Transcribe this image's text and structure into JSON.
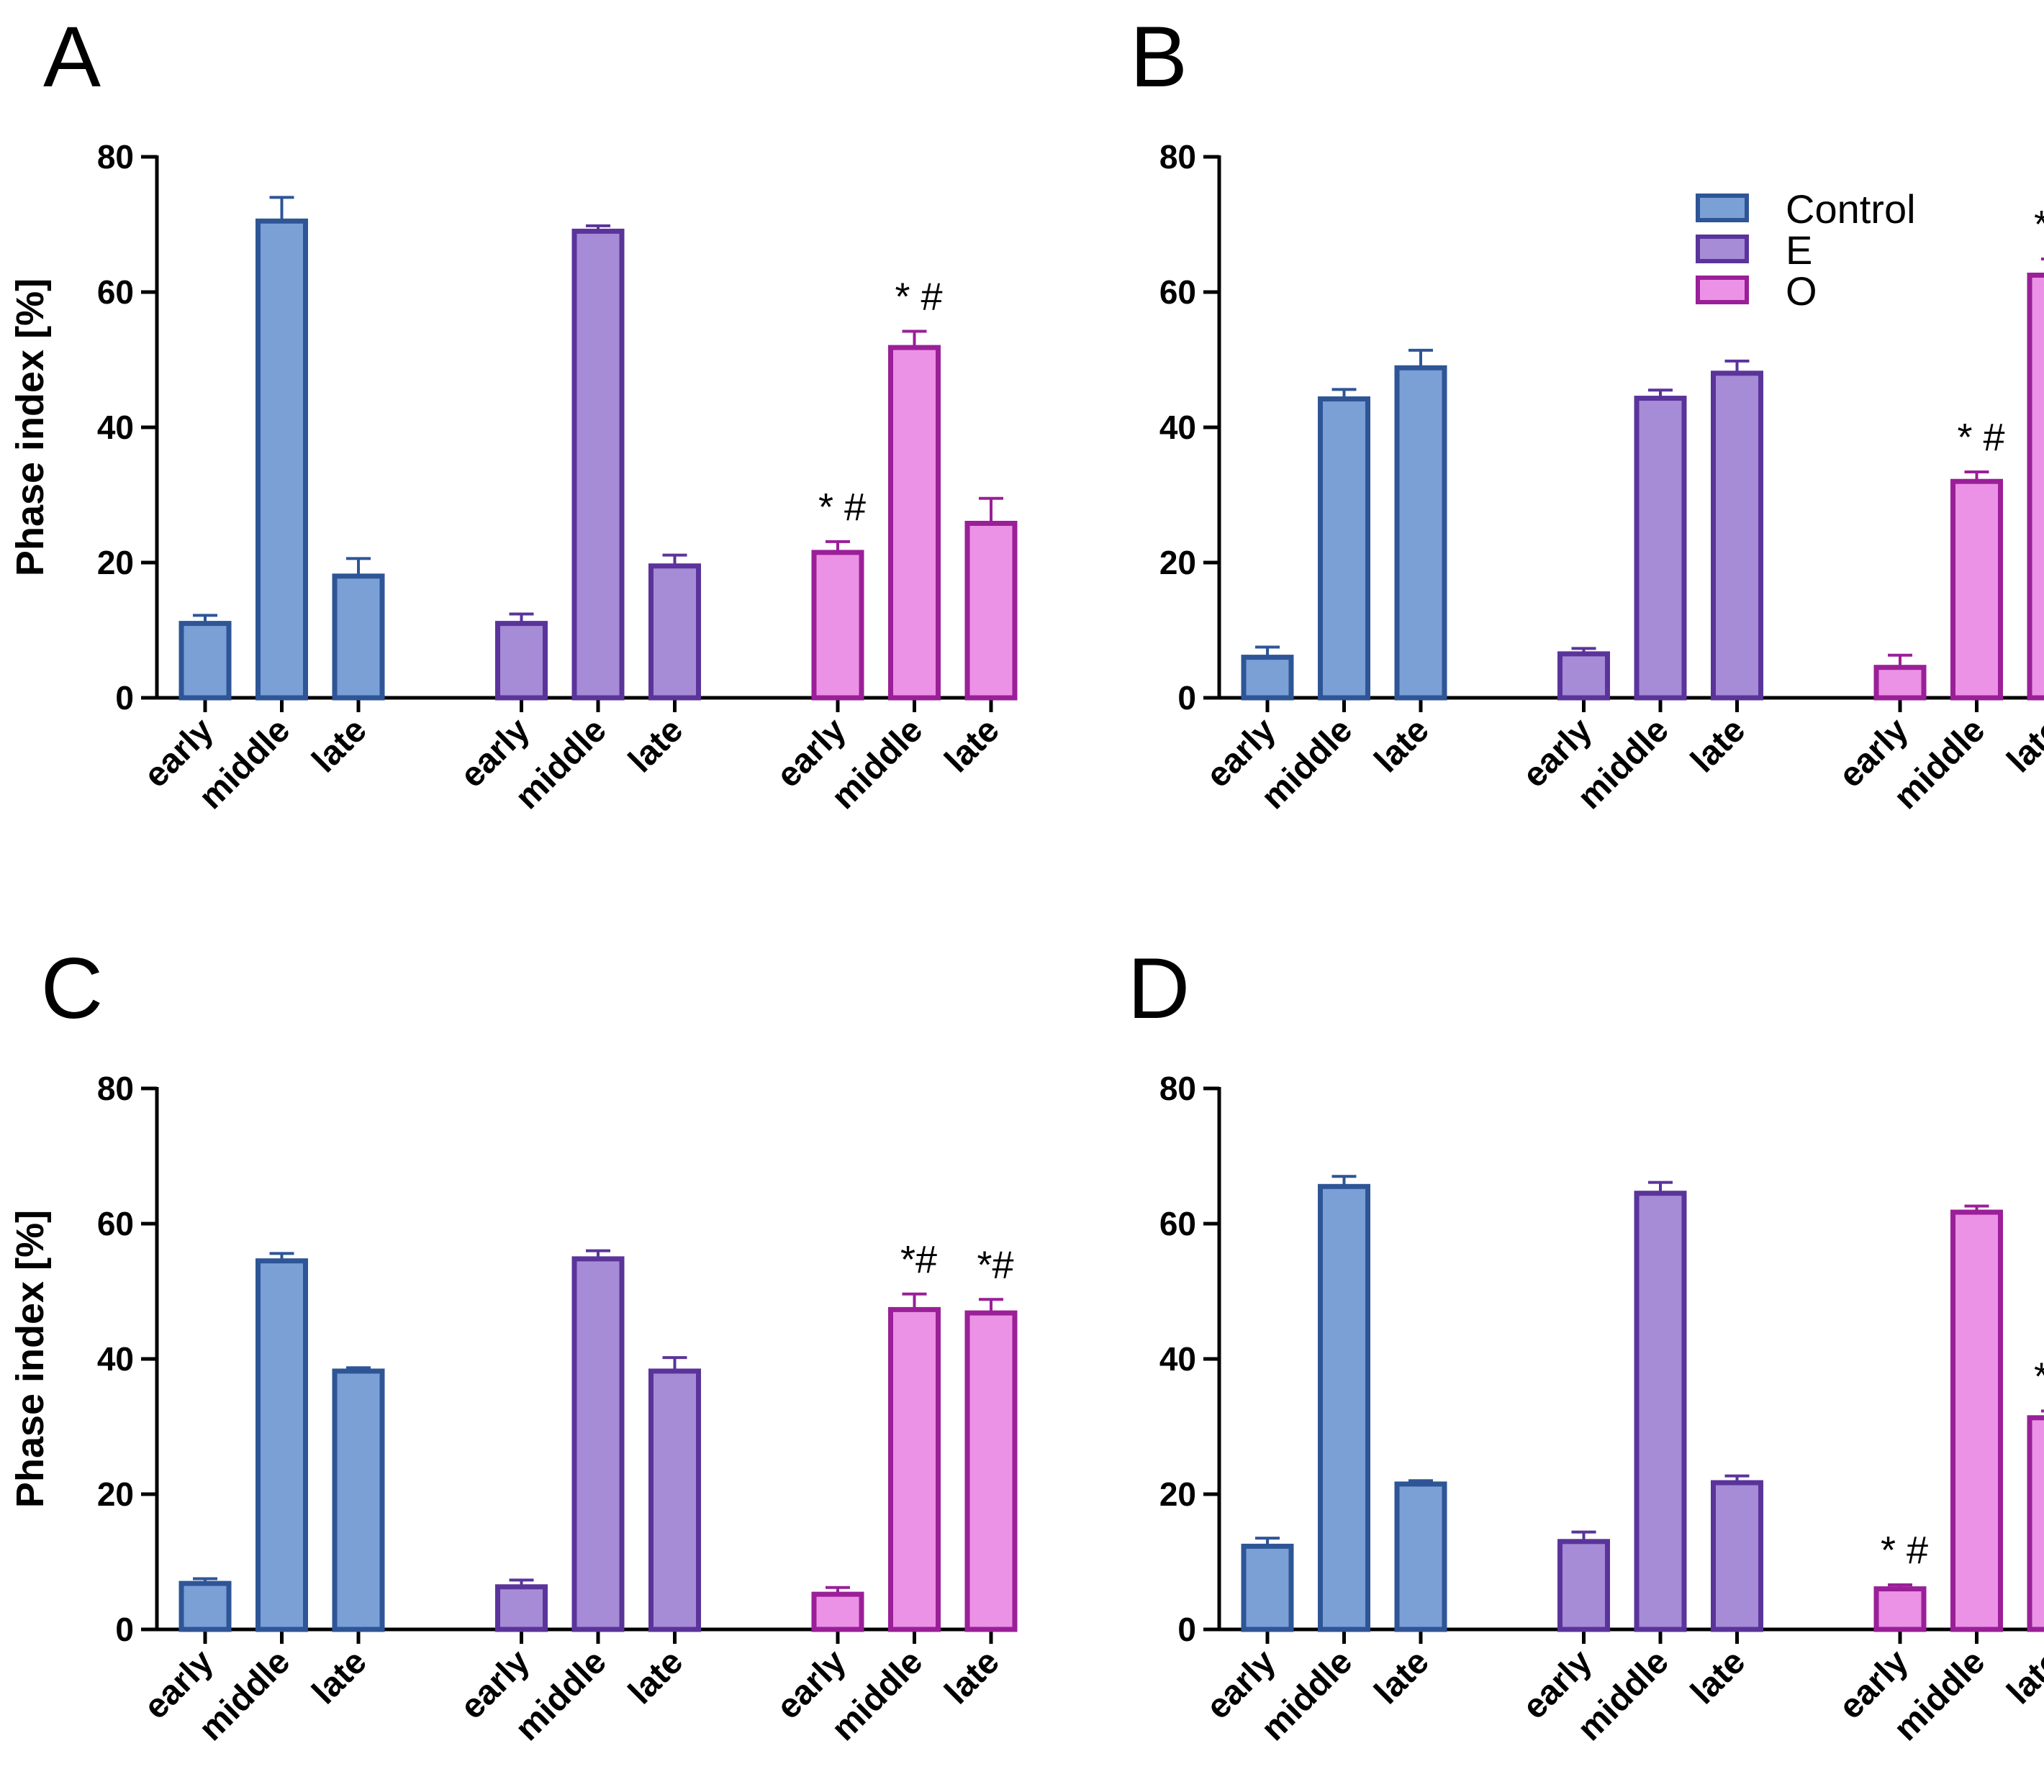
{
  "figure": {
    "colors": {
      "Control": {
        "fill": "#7ba0d6",
        "stroke": "#2e5596"
      },
      "E": {
        "fill": "#a68bd6",
        "stroke": "#5a349a"
      },
      "O": {
        "fill": "#ec92e6",
        "stroke": "#9a1f98"
      }
    },
    "legend": [
      {
        "label": "Control",
        "group": "Control"
      },
      {
        "label": "E",
        "group": "E"
      },
      {
        "label": "O",
        "group": "O"
      }
    ]
  },
  "chart_data": [
    {
      "panel": "A",
      "type": "bar",
      "ylabel": "Phase index [%]",
      "ylim": [
        0,
        80
      ],
      "yticks": [
        "0",
        "20",
        "40",
        "60",
        "80"
      ],
      "categories": [
        "early",
        "middle",
        "late"
      ],
      "series": [
        {
          "name": "Control",
          "values": [
            11,
            70.5,
            18
          ],
          "errors": [
            1.2,
            3.5,
            2.6
          ],
          "annotations": [
            "",
            "",
            ""
          ]
        },
        {
          "name": "E",
          "values": [
            11,
            69,
            19.5
          ],
          "errors": [
            1.4,
            0.8,
            1.6
          ],
          "annotations": [
            "",
            "",
            ""
          ]
        },
        {
          "name": "O",
          "values": [
            21.5,
            51.8,
            25.8
          ],
          "errors": [
            1.6,
            2.4,
            3.7
          ],
          "annotations": [
            "* #",
            "* #",
            ""
          ]
        }
      ],
      "legend": false
    },
    {
      "panel": "B",
      "type": "bar",
      "ylabel": "",
      "ylim": [
        0,
        80
      ],
      "yticks": [
        "0",
        "20",
        "40",
        "60",
        "80"
      ],
      "categories": [
        "early",
        "middle",
        "late"
      ],
      "series": [
        {
          "name": "Control",
          "values": [
            6,
            44.2,
            48.8
          ],
          "errors": [
            1.5,
            1.4,
            2.6
          ],
          "annotations": [
            "",
            "",
            ""
          ]
        },
        {
          "name": "E",
          "values": [
            6.5,
            44.3,
            48
          ],
          "errors": [
            0.8,
            1.2,
            1.8
          ],
          "annotations": [
            "",
            "",
            ""
          ]
        },
        {
          "name": "O",
          "values": [
            4.5,
            32,
            62.5
          ],
          "errors": [
            1.8,
            1.4,
            2.4
          ],
          "annotations": [
            "",
            "* #",
            "* #"
          ]
        }
      ],
      "legend": true
    },
    {
      "panel": "C",
      "type": "bar",
      "ylabel": "Phase index [%]",
      "ylim": [
        0,
        80
      ],
      "yticks": [
        "0",
        "20",
        "40",
        "60",
        "80"
      ],
      "categories": [
        "early",
        "middle",
        "late"
      ],
      "series": [
        {
          "name": "Control",
          "values": [
            6.8,
            54.5,
            38.2
          ],
          "errors": [
            0.7,
            1.1,
            0.5
          ],
          "annotations": [
            "",
            "",
            ""
          ]
        },
        {
          "name": "E",
          "values": [
            6.3,
            54.8,
            38.2
          ],
          "errors": [
            1.0,
            1.2,
            2.0
          ],
          "annotations": [
            "",
            "",
            ""
          ]
        },
        {
          "name": "O",
          "values": [
            5.2,
            47.3,
            46.8
          ],
          "errors": [
            1.0,
            2.3,
            2.0
          ],
          "annotations": [
            "",
            "*#",
            "*#"
          ]
        }
      ],
      "legend": false
    },
    {
      "panel": "D",
      "type": "bar",
      "ylabel": "",
      "ylim": [
        0,
        80
      ],
      "yticks": [
        "0",
        "20",
        "40",
        "60",
        "80"
      ],
      "categories": [
        "early",
        "middle",
        "late"
      ],
      "series": [
        {
          "name": "Control",
          "values": [
            12.3,
            65.5,
            21.5
          ],
          "errors": [
            1.2,
            1.5,
            0.5
          ],
          "annotations": [
            "",
            "",
            ""
          ]
        },
        {
          "name": "E",
          "values": [
            13,
            64.5,
            21.7
          ],
          "errors": [
            1.4,
            1.6,
            1.0
          ],
          "annotations": [
            "",
            "",
            ""
          ]
        },
        {
          "name": "O",
          "values": [
            6,
            61.7,
            31.3
          ],
          "errors": [
            0.6,
            0.9,
            1.0
          ],
          "annotations": [
            "* #",
            "",
            "* #"
          ]
        }
      ],
      "legend": false
    }
  ]
}
